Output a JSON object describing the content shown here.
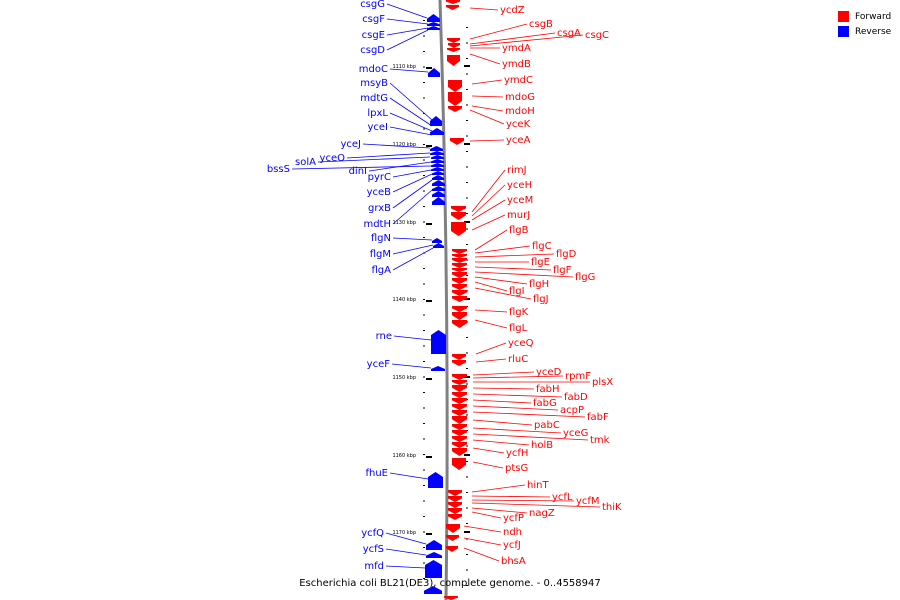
{
  "legend": {
    "forward_label": "Forward",
    "reverse_label": "Reverse",
    "forward_color": "#ff0000",
    "reverse_color": "#0000ff"
  },
  "caption": "Escherichia coli BL21(DE3), complete genome. - 0..4558947",
  "scale_ticks": [
    "1110 kbp",
    "1120 kbp",
    "1130 kbp",
    "1140 kbp",
    "1150 kbp",
    "1160 kbp",
    "1170 kbp"
  ],
  "reverse_genes": [
    "csgG",
    "csgF",
    "csgE",
    "csgD",
    "mdoC",
    "msyB",
    "mdtG",
    "lpxL",
    "yceI",
    "yceJ",
    "yceO",
    "solA",
    "dinI",
    "bssS",
    "pyrC",
    "yceB",
    "grxB",
    "mdtH",
    "flgN",
    "flgM",
    "flgA",
    "rne",
    "yceF",
    "fhuE",
    "ycfQ",
    "ycfS",
    "mfd"
  ],
  "forward_genes": [
    "ycdZ",
    "csgB",
    "csgA",
    "csgC",
    "ymdA",
    "ymdB",
    "ymdC",
    "mdoG",
    "mdoH",
    "yceK",
    "yceA",
    "rimJ",
    "yceH",
    "yceM",
    "murJ",
    "flgB",
    "flgC",
    "flgD",
    "flgE",
    "flgF",
    "flgG",
    "flgH",
    "flgI",
    "flgJ",
    "flgK",
    "flgL",
    "yceQ",
    "rluC",
    "yceD",
    "rpmF",
    "plsX",
    "fabH",
    "fabD",
    "fabG",
    "acpP",
    "fabF",
    "pabC",
    "yceG",
    "tmk",
    "holB",
    "ycfH",
    "ptsG",
    "hinT",
    "ycfL",
    "ycfM",
    "thiK",
    "nagZ",
    "ycfP",
    "ndh",
    "ycfJ",
    "bhsA"
  ]
}
